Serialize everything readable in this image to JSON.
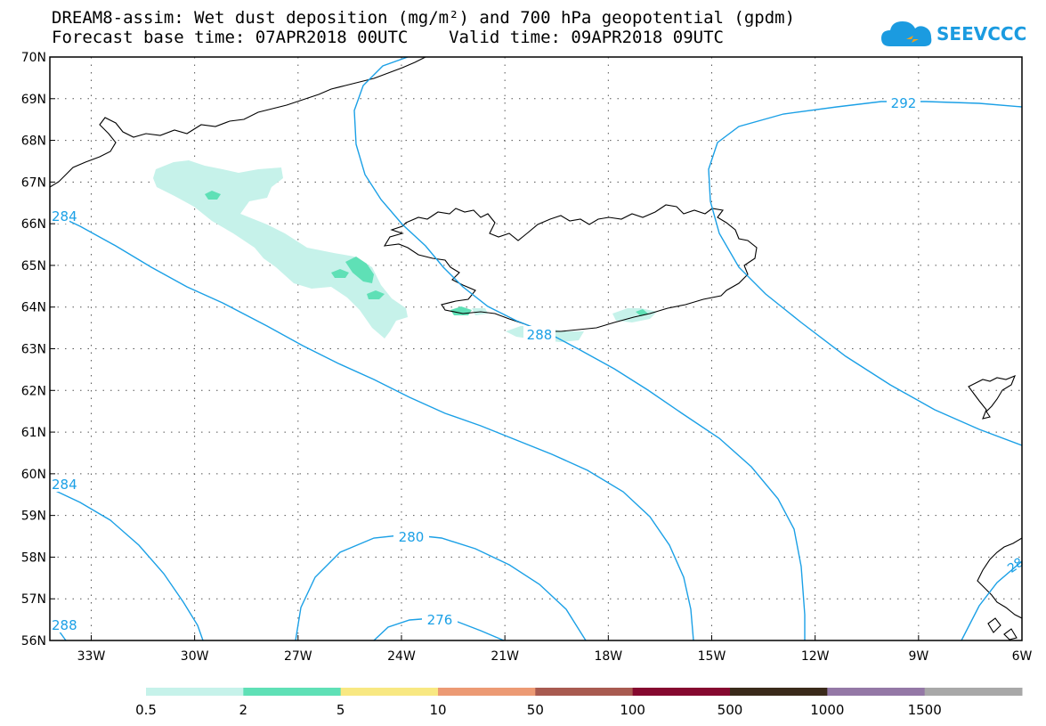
{
  "header": {
    "title_line1": "DREAM8-assim: Wet dust deposition (mg/m²) and 700 hPa geopotential (gpdm)",
    "title_line2": "Forecast base time: 07APR2018 00UTC    Valid time: 09APR2018 09UTC"
  },
  "logo": {
    "text": "SEEVCCC",
    "icon": "cloud-icon",
    "color": "#1b9be0"
  },
  "map": {
    "lat_range": [
      56,
      70
    ],
    "lon_range": [
      -34.2,
      -6
    ],
    "lat_labels": [
      "70N",
      "69N",
      "68N",
      "67N",
      "66N",
      "65N",
      "64N",
      "63N",
      "62N",
      "61N",
      "60N",
      "59N",
      "58N",
      "57N",
      "56N"
    ],
    "lon_labels": [
      "33W",
      "30W",
      "27W",
      "24W",
      "21W",
      "18W",
      "15W",
      "12W",
      "9W",
      "6W"
    ],
    "contour_color": "#1ba0e6",
    "contour_labels": [
      "292",
      "288",
      "284",
      "284",
      "288",
      "280",
      "276",
      "28"
    ]
  },
  "legend": {
    "bins": [
      {
        "color": "#c6f2ea"
      },
      {
        "color": "#5fe0b6"
      },
      {
        "color": "#f8e882"
      },
      {
        "color": "#ec9a74"
      },
      {
        "color": "#a85a50"
      },
      {
        "color": "#85092f"
      },
      {
        "color": "#3a2a1a"
      },
      {
        "color": "#9478a6"
      },
      {
        "color": "#a8a8a8"
      }
    ],
    "labels": [
      "0.5",
      "2",
      "5",
      "10",
      "50",
      "100",
      "500",
      "1000",
      "1500"
    ]
  }
}
